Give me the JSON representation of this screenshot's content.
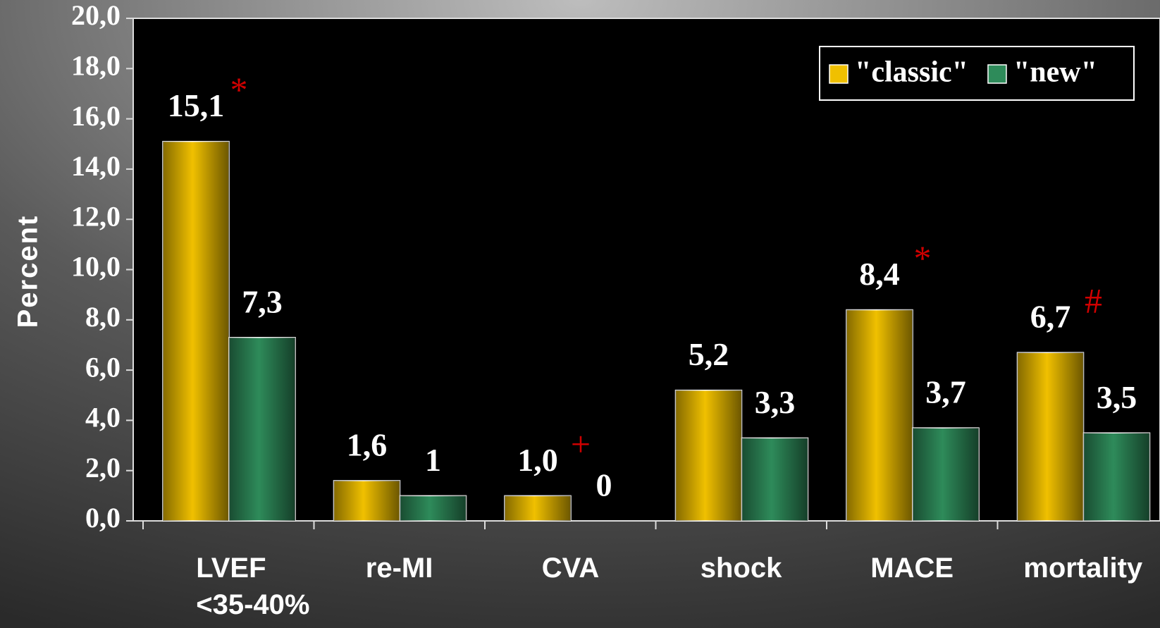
{
  "chart_data": {
    "type": "bar",
    "y_label": "Percent",
    "categories": [
      "LVEF\n<35-40%",
      "re-MI",
      "CVA",
      "shock",
      "MACE",
      "mortality"
    ],
    "series": [
      {
        "name": "\"classic\"",
        "color": "#f0c000",
        "values": [
          15.1,
          1.6,
          1.0,
          5.2,
          8.4,
          6.7
        ],
        "value_labels": [
          "15,1",
          "1,6",
          "1,0",
          "5,2",
          "8,4",
          "6,7"
        ]
      },
      {
        "name": "\"new\"",
        "color": "#2e8b5a",
        "values": [
          7.3,
          1,
          0,
          3.3,
          3.7,
          3.5
        ],
        "value_labels": [
          "7,3",
          "1",
          "0",
          "3,3",
          "3,7",
          "3,5"
        ]
      }
    ],
    "annotations": [
      {
        "text": "*",
        "category": 0
      },
      {
        "text": "+",
        "category": 2
      },
      {
        "text": "*",
        "category": 4
      },
      {
        "text": "#",
        "category": 5
      }
    ],
    "ylim": [
      0,
      20
    ],
    "yticks": [
      {
        "value": 0,
        "label": "0,0"
      },
      {
        "value": 2,
        "label": "2,0"
      },
      {
        "value": 4,
        "label": "4,0"
      },
      {
        "value": 6,
        "label": "6,0"
      },
      {
        "value": 8,
        "label": "8,0"
      },
      {
        "value": 10,
        "label": "10,0"
      },
      {
        "value": 12,
        "label": "12,0"
      },
      {
        "value": 14,
        "label": "14,0"
      },
      {
        "value": 16,
        "label": "16,0"
      },
      {
        "value": 18,
        "label": "18,0"
      },
      {
        "value": 20,
        "label": "20,0"
      }
    ],
    "legend": "top-right"
  }
}
